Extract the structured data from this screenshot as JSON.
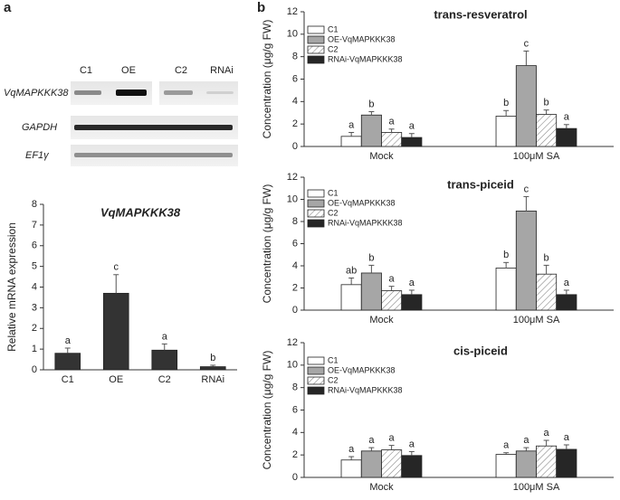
{
  "panels": [
    "a",
    "b"
  ],
  "gel": {
    "lanes": [
      "C1",
      "OE",
      "C2",
      "RNAi"
    ],
    "genes": [
      "VqMAPKKK38",
      "GAPDH",
      "EF1γ"
    ]
  },
  "chart_data": [
    {
      "type": "bar",
      "title": "VqMAPKKK38",
      "y_label": "Relative mRNA expression",
      "categories": [
        "C1",
        "OE",
        "C2",
        "RNAi"
      ],
      "values": [
        0.8,
        3.7,
        0.95,
        0.15
      ],
      "errors": [
        0.25,
        0.9,
        0.3,
        0.07
      ],
      "letters": [
        "a",
        "c",
        "a",
        "b"
      ],
      "color": "#333333",
      "ylim": [
        0,
        8
      ],
      "yticks": [
        0,
        1,
        2,
        3,
        4,
        5,
        6,
        7,
        8
      ]
    },
    {
      "type": "bar",
      "title": "trans-resveratrol",
      "y_label": "Concentration (μg/g FW)",
      "categories": [
        "Mock",
        "100μM SA"
      ],
      "series": [
        {
          "name": "C1",
          "color": "#ffffff",
          "values": [
            0.9,
            2.7
          ],
          "errors": [
            0.35,
            0.5
          ],
          "letters": [
            "a",
            "b"
          ]
        },
        {
          "name": "OE-VqMAPKKK38",
          "color": "#a6a6a6",
          "values": [
            2.8,
            7.2
          ],
          "errors": [
            0.3,
            1.3
          ],
          "letters": [
            "b",
            "c"
          ]
        },
        {
          "name": "C2",
          "color": "#ffffff",
          "hatch": true,
          "values": [
            1.25,
            2.85
          ],
          "errors": [
            0.3,
            0.4
          ],
          "letters": [
            "a",
            "b"
          ]
        },
        {
          "name": "RNAi-VqMAPKKK38",
          "color": "#262626",
          "values": [
            0.8,
            1.6
          ],
          "errors": [
            0.35,
            0.35
          ],
          "letters": [
            "a",
            "a"
          ]
        }
      ],
      "ylim": [
        0,
        12
      ],
      "yticks": [
        0,
        2,
        4,
        6,
        8,
        10,
        12
      ],
      "legend": "upper left"
    },
    {
      "type": "bar",
      "title": "trans-piceid",
      "y_label": "Concentration (μg/g FW)",
      "categories": [
        "Mock",
        "100μM SA"
      ],
      "series": [
        {
          "name": "C1",
          "color": "#ffffff",
          "values": [
            2.3,
            3.8
          ],
          "errors": [
            0.6,
            0.5
          ],
          "letters": [
            "ab",
            "b"
          ]
        },
        {
          "name": "OE-VqMAPKKK38",
          "color": "#a6a6a6",
          "values": [
            3.35,
            8.95
          ],
          "errors": [
            0.7,
            1.3
          ],
          "letters": [
            "b",
            "c"
          ]
        },
        {
          "name": "C2",
          "color": "#ffffff",
          "hatch": true,
          "values": [
            1.75,
            3.25
          ],
          "errors": [
            0.4,
            0.8
          ],
          "letters": [
            "a",
            "b"
          ]
        },
        {
          "name": "RNAi-VqMAPKKK38",
          "color": "#262626",
          "values": [
            1.4,
            1.4
          ],
          "errors": [
            0.4,
            0.4
          ],
          "letters": [
            "a",
            "a"
          ]
        }
      ],
      "ylim": [
        0,
        12
      ],
      "yticks": [
        0,
        2,
        4,
        6,
        8,
        10,
        12
      ],
      "legend": "upper left"
    },
    {
      "type": "bar",
      "title": "cis-piceid",
      "y_label": "Concentration (μg/g FW)",
      "categories": [
        "Mock",
        "100μM SA"
      ],
      "series": [
        {
          "name": "C1",
          "color": "#ffffff",
          "values": [
            1.55,
            2.05
          ],
          "errors": [
            0.3,
            0.15
          ],
          "letters": [
            "a",
            "a"
          ]
        },
        {
          "name": "OE-VqMAPKKK38",
          "color": "#a6a6a6",
          "values": [
            2.35,
            2.35
          ],
          "errors": [
            0.3,
            0.3
          ],
          "letters": [
            "a",
            "a"
          ]
        },
        {
          "name": "C2",
          "color": "#ffffff",
          "hatch": true,
          "values": [
            2.45,
            2.8
          ],
          "errors": [
            0.4,
            0.5
          ],
          "letters": [
            "a",
            "a"
          ]
        },
        {
          "name": "RNAi-VqMAPKKK38",
          "color": "#262626",
          "values": [
            1.95,
            2.5
          ],
          "errors": [
            0.35,
            0.4
          ],
          "letters": [
            "a",
            "a"
          ]
        }
      ],
      "ylim": [
        0,
        12
      ],
      "yticks": [
        0,
        2,
        4,
        6,
        8,
        10,
        12
      ],
      "legend": "upper left"
    }
  ]
}
